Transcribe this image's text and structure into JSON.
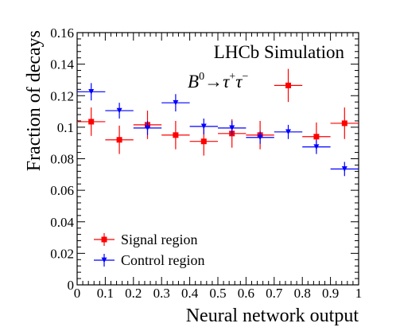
{
  "chart_data": {
    "type": "scatter",
    "xlabel": "Neural network output",
    "ylabel": "Fraction of decays",
    "xlim": [
      0,
      1
    ],
    "ylim": [
      0,
      0.16
    ],
    "x_ticks": [
      0,
      0.1,
      0.2,
      0.3,
      0.4,
      0.5,
      0.6,
      0.7,
      0.8,
      0.9,
      1
    ],
    "x_tick_labels": [
      "0",
      "0.1",
      "0.2",
      "0.3",
      "0.4",
      "0.5",
      "0.6",
      "0.7",
      "0.8",
      "0.9",
      "1"
    ],
    "y_ticks": [
      0,
      0.02,
      0.04,
      0.06,
      0.08,
      0.1,
      0.12,
      0.14,
      0.16
    ],
    "y_tick_labels": [
      "0",
      "0.02",
      "0.04",
      "0.06",
      "0.08",
      "0.1",
      "0.12",
      "0.14",
      "0.16"
    ],
    "grid": false,
    "legend_position": "bottom-left",
    "annotations": {
      "experiment": "LHCb Simulation",
      "decay_prefix": "B",
      "decay_sup0": "0",
      "decay_arrow": "→τ",
      "decay_sup_plus": "+",
      "decay_tau2": "τ",
      "decay_sup_minus": "−"
    },
    "bin_half_width": 0.05,
    "series": [
      {
        "name": "Signal region",
        "color": "#ff0000",
        "marker": "square",
        "x": [
          0.05,
          0.15,
          0.25,
          0.35,
          0.45,
          0.55,
          0.65,
          0.75,
          0.85,
          0.95
        ],
        "y": [
          0.1035,
          0.092,
          0.1015,
          0.095,
          0.091,
          0.096,
          0.095,
          0.1265,
          0.094,
          0.1025
        ],
        "yerr": [
          0.009,
          0.009,
          0.009,
          0.009,
          0.009,
          0.009,
          0.009,
          0.0105,
          0.009,
          0.01
        ]
      },
      {
        "name": "Control region",
        "color": "#0000ff",
        "marker": "triangle-down",
        "x": [
          0.05,
          0.15,
          0.25,
          0.35,
          0.45,
          0.55,
          0.65,
          0.75,
          0.85,
          0.95
        ],
        "y": [
          0.1225,
          0.1105,
          0.0995,
          0.1155,
          0.1005,
          0.0995,
          0.0935,
          0.097,
          0.0875,
          0.0735
        ],
        "yerr": [
          0.0055,
          0.005,
          0.0045,
          0.0055,
          0.005,
          0.0045,
          0.004,
          0.0045,
          0.0045,
          0.0045
        ]
      }
    ]
  }
}
